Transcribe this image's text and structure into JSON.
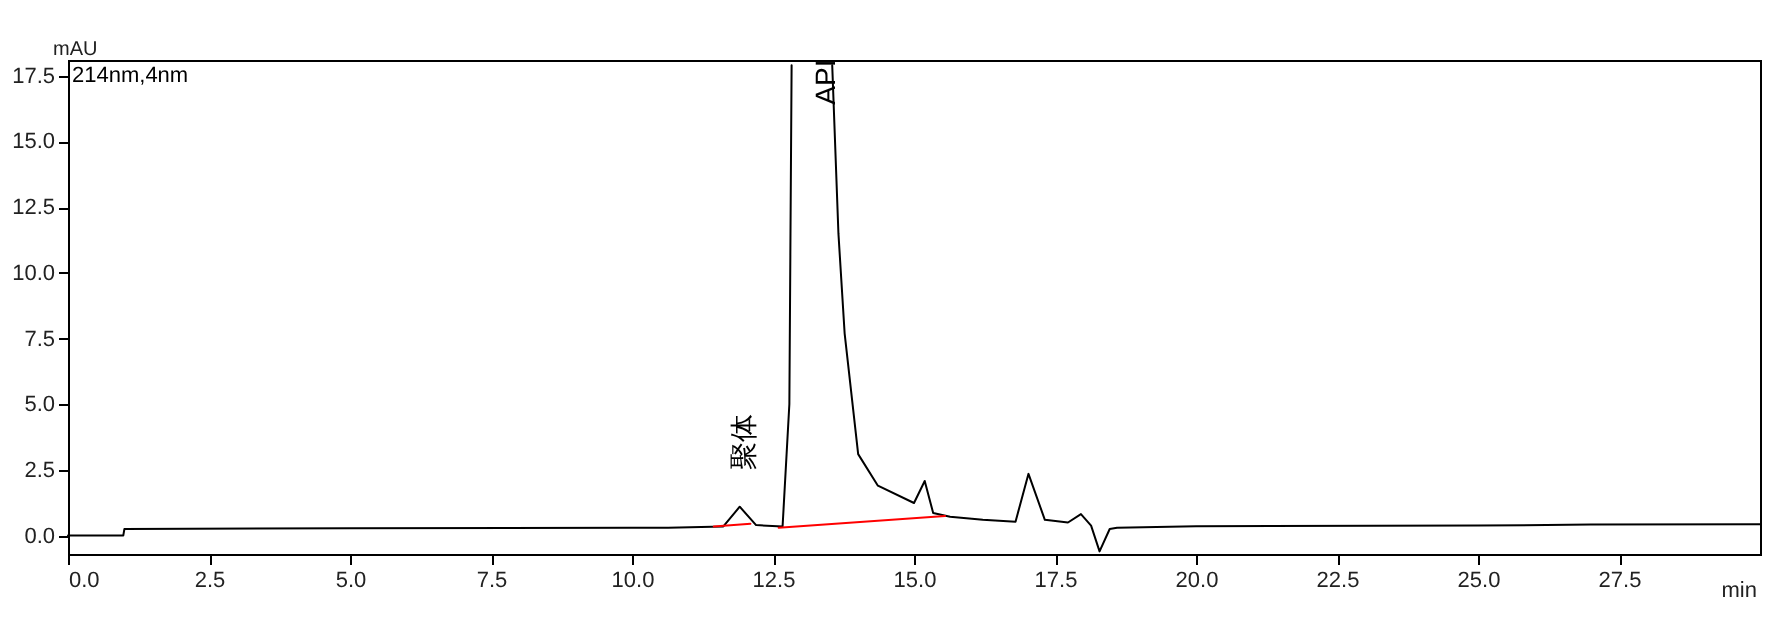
{
  "chart_data": {
    "type": "line",
    "xlabel": "min",
    "ylabel": "mAU",
    "annotations": [
      "214nm,4nm",
      {
        "text": "API",
        "x": 13.45,
        "y": 14.8
      },
      {
        "text": "聚体",
        "x": 12.0,
        "y": 0.9
      }
    ],
    "xlim": [
      0,
      30
    ],
    "ylim": [
      -0.7,
      18.1
    ],
    "xticks": [
      {
        "value": 0,
        "label": "0.0"
      },
      2.5,
      {
        "value": 5,
        "label": "5.0"
      },
      7.5,
      {
        "value": 10,
        "label": "10.0"
      },
      12.5,
      {
        "value": 15,
        "label": "15.0"
      },
      17.5,
      {
        "value": 20,
        "label": "20.0"
      },
      22.5,
      {
        "value": 25,
        "label": "25.0"
      },
      27.5
    ],
    "yticks": [
      {
        "value": 0,
        "label": "0.0"
      },
      2.5,
      {
        "value": 5,
        "label": "5.0"
      },
      7.5,
      {
        "value": 10,
        "label": "10.0"
      },
      12.5,
      {
        "value": 15,
        "label": "15.0"
      },
      17.5
    ],
    "grid": false,
    "legend": false,
    "marker": "none",
    "line_style": "solid",
    "series": [
      {
        "color": "#000000",
        "x": [
          0,
          0.98,
          1.0,
          5,
          10,
          10.64,
          11.62,
          11.91,
          12.2,
          12.67,
          12.79,
          12.83,
          12.84,
          13.52,
          13.55,
          13.66,
          13.77,
          14.01,
          14.36,
          15.0,
          15.19,
          15.34,
          15.64,
          16.22,
          16.8,
          17.03,
          17.32,
          17.73,
          17.96,
          18.14,
          18.29,
          18.47,
          18.6,
          20,
          25,
          27,
          30
        ],
        "values": [
          0.0,
          0.0,
          0.25,
          0.28,
          0.3,
          0.3,
          0.35,
          1.1,
          0.4,
          0.35,
          5.0,
          17.9,
          null,
          null,
          17.9,
          11.5,
          7.7,
          3.1,
          1.9,
          1.24,
          2.08,
          0.86,
          0.72,
          0.6,
          0.53,
          2.35,
          0.6,
          0.5,
          0.82,
          0.38,
          -0.6,
          0.25,
          0.3,
          0.36,
          0.38,
          0.42,
          0.43
        ]
      },
      {
        "color": "#ff0000",
        "x": [
          11.45,
          12.1,
          12.3,
          12.6,
          15.55
        ],
        "values": [
          0.35,
          0.45,
          null,
          0.3,
          0.75
        ]
      }
    ]
  }
}
